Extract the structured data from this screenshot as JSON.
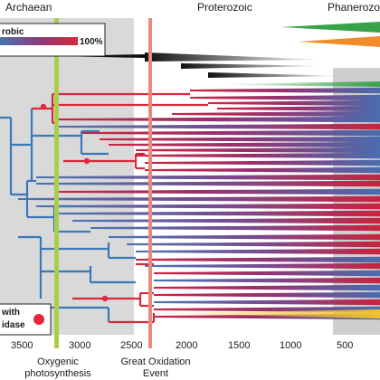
{
  "eons": {
    "archaean": "Archaean",
    "proterozoic": "Proterozoic",
    "phanerozoic": "Phanerozoic"
  },
  "legend": {
    "aerobic_label": "robic",
    "aerobic_max": "100%",
    "oxidase_line1": "with",
    "oxidase_line2": "idase"
  },
  "events": {
    "oxygenic_photosynthesis": [
      "Oxygenic",
      "photosynthesis"
    ],
    "great_oxidation_event": [
      "Great Oxidation",
      "Event"
    ]
  },
  "time_axis": {
    "unit": "Ma",
    "ticks": [
      "3500",
      "3000",
      "2500",
      "2000",
      "1500",
      "1000",
      "500"
    ]
  },
  "colors": {
    "archaean_band": "#d9d9d9",
    "oxygenic_line": "#a9cf4a",
    "goe_line": "#e88a7e",
    "tree_blue": "#3a78b8",
    "tree_red": "#d62a3b",
    "gradient_red": "#c9243f",
    "gradient_blue": "#4a73b3",
    "green_taper": "#3aa34a",
    "orange_taper": "#f28c28",
    "yellow_taper": "#f2c12e",
    "oxidase_dot": "#e8263a"
  }
}
